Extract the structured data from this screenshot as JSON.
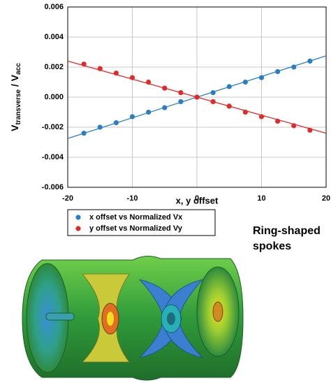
{
  "chart_data": {
    "type": "scatter",
    "x_label": "x, y offset",
    "y_label": [
      "V",
      "transverse",
      " / V",
      "acc"
    ],
    "xlim": [
      -20,
      20
    ],
    "ylim": [
      -0.006,
      0.006
    ],
    "xticks": [
      -20,
      -10,
      0,
      10,
      20
    ],
    "yticks": [
      -0.006,
      -0.004,
      -0.002,
      {
        "value": 0,
        "label": "0.000"
      },
      0.002,
      0.004,
      0.006
    ],
    "grid": true,
    "x": [
      -17.5,
      -15,
      -12.5,
      -10,
      -7.5,
      -5,
      -2.5,
      0,
      2.5,
      5,
      7.5,
      10,
      12.5,
      15,
      17.5
    ],
    "series": [
      {
        "name": "x offset vs Normalized Vx",
        "color": "#2a7fc4",
        "values": [
          -0.0024,
          -0.002,
          -0.0017,
          -0.0013,
          -0.001,
          -0.0007,
          -0.0003,
          0,
          0.0003,
          0.0007,
          0.001,
          0.0013,
          0.0017,
          0.002,
          0.0024
        ],
        "trend_x": [
          -20,
          20
        ],
        "trend_values": [
          -0.00275,
          0.00275
        ]
      },
      {
        "name": "y offset vs Normalized Vy",
        "color": "#e32a2a",
        "values": [
          0.0022,
          0.0019,
          0.0016,
          0.0013,
          0.001,
          0.0006,
          0.0003,
          0,
          -0.0003,
          -0.0006,
          -0.001,
          -0.0013,
          -0.0016,
          -0.0019,
          -0.0022
        ],
        "trend_x": [
          -20,
          20
        ],
        "trend_values": [
          0.0024,
          -0.0024
        ]
      }
    ],
    "annotation": [
      "Ring-shaped",
      "spokes"
    ]
  }
}
